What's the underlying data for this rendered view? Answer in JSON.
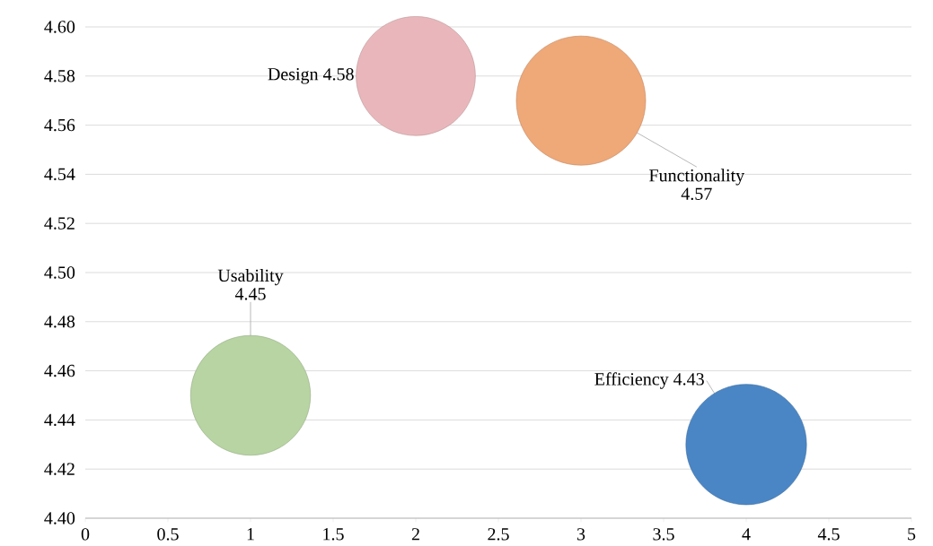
{
  "chart_data": {
    "type": "bubble",
    "series": [
      {
        "name": "Usability",
        "color": "#b7d4a2",
        "x": [
          1
        ],
        "values": [
          4.45
        ],
        "sizes": [
          0.86
        ],
        "value_labels": [
          "4.45"
        ]
      },
      {
        "name": "Design",
        "color": "#e9b7bb",
        "x": [
          2
        ],
        "values": [
          4.58
        ],
        "sizes": [
          0.85
        ],
        "value_labels": [
          "4.58"
        ]
      },
      {
        "name": "Functionality",
        "color": "#efa878",
        "x": [
          3
        ],
        "values": [
          4.57
        ],
        "sizes": [
          1
        ],
        "value_labels": [
          "4.57"
        ]
      },
      {
        "name": "Efficiency",
        "color": "#4a86c5",
        "x": [
          4
        ],
        "values": [
          4.43
        ],
        "sizes": [
          0.87
        ],
        "value_labels": [
          "4.43"
        ]
      }
    ],
    "xlim": [
      0,
      5
    ],
    "xticks": [
      0,
      0.5,
      1,
      1.5,
      2,
      2.5,
      3,
      3.5,
      4,
      4.5,
      5
    ],
    "ylim": [
      4.4,
      4.6
    ],
    "yticks": [
      {
        "value": 4.4,
        "label": "4.40"
      },
      {
        "value": 4.42,
        "label": "4.42"
      },
      {
        "value": 4.44,
        "label": "4.44"
      },
      {
        "value": 4.46,
        "label": "4.46"
      },
      {
        "value": 4.48,
        "label": "4.48"
      },
      {
        "value": 4.5,
        "label": "4.50"
      },
      {
        "value": 4.52,
        "label": "4.52"
      },
      {
        "value": 4.54,
        "label": "4.54"
      },
      {
        "value": 4.56,
        "label": "4.56"
      },
      {
        "value": 4.58,
        "label": "4.58"
      },
      {
        "value": 4.6,
        "label": "4.60"
      }
    ],
    "grid": "y"
  }
}
